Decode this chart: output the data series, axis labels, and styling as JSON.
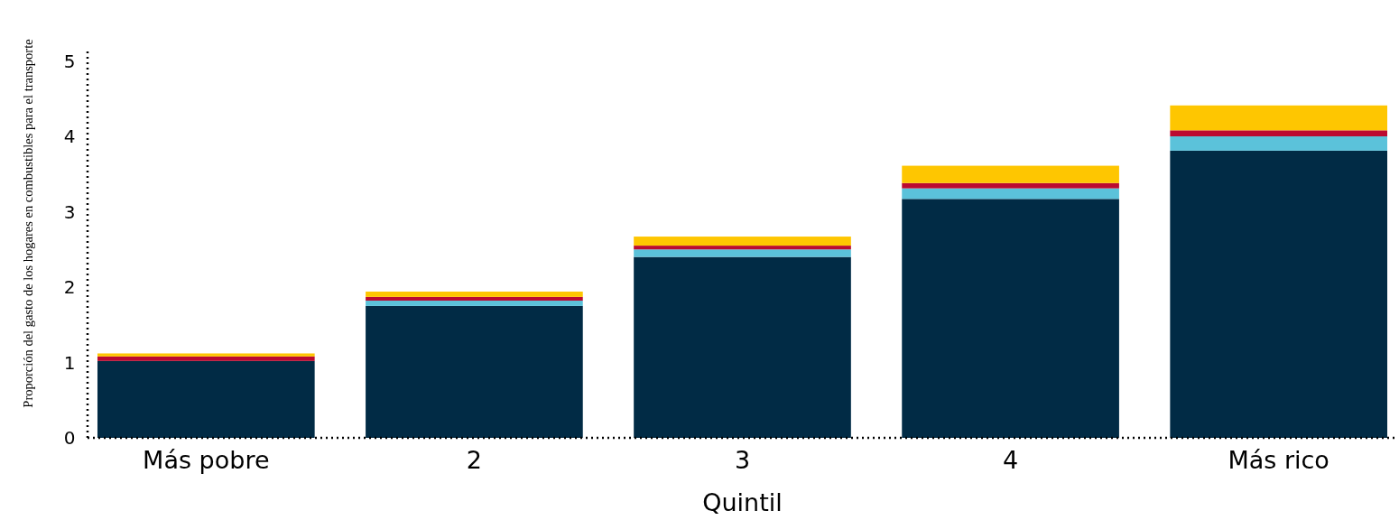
{
  "chart_data": {
    "type": "bar",
    "xlabel": "Quintil",
    "ylabel": "Proporción del gasto de los hogares en combustibles para el transporte",
    "categories": [
      "Más pobre",
      "2",
      "3",
      "4",
      "Más rico"
    ],
    "stacked": true,
    "series": [
      {
        "color": "#012b45",
        "values": [
          1.02,
          1.75,
          2.4,
          3.17,
          3.81
        ]
      },
      {
        "color": "#5bc2da",
        "values": [
          0,
          0.07,
          0.1,
          0.14,
          0.19
        ]
      },
      {
        "color": "#bb0a30",
        "values": [
          0.06,
          0.05,
          0.05,
          0.07,
          0.08
        ]
      },
      {
        "color": "#fec601",
        "values": [
          0.04,
          0.07,
          0.12,
          0.23,
          0.33
        ]
      }
    ],
    "ylim": [
      0,
      5.15
    ],
    "yticks": [
      0,
      1,
      2,
      3,
      4,
      5
    ],
    "grid": false
  }
}
